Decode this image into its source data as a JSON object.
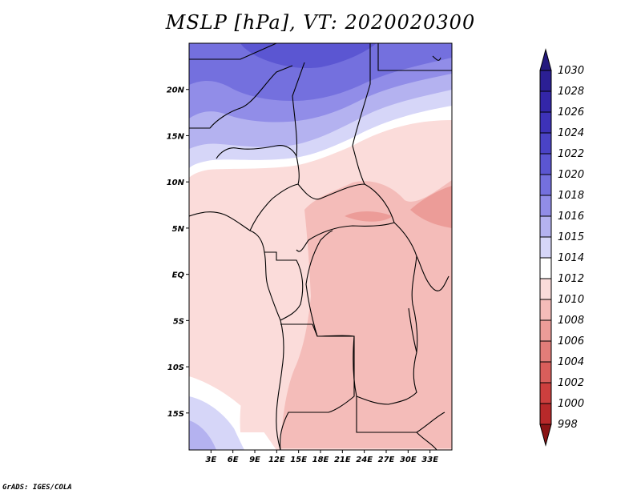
{
  "title": "MSLP [hPa], VT: 2020020300",
  "credit": "GrADS: IGES/COLA",
  "map": {
    "lon_range": [
      0,
      36
    ],
    "lat_range": [
      -19,
      25
    ],
    "lat_ticks": [
      {
        "value": 20,
        "label": "20N"
      },
      {
        "value": 15,
        "label": "15N"
      },
      {
        "value": 10,
        "label": "10N"
      },
      {
        "value": 5,
        "label": "5N"
      },
      {
        "value": 0,
        "label": "EQ"
      },
      {
        "value": -5,
        "label": "5S"
      },
      {
        "value": -10,
        "label": "10S"
      },
      {
        "value": -15,
        "label": "15S"
      }
    ],
    "lon_ticks": [
      {
        "value": 3,
        "label": "3E"
      },
      {
        "value": 6,
        "label": "6E"
      },
      {
        "value": 9,
        "label": "9E"
      },
      {
        "value": 12,
        "label": "12E"
      },
      {
        "value": 15,
        "label": "15E"
      },
      {
        "value": 18,
        "label": "18E"
      },
      {
        "value": 21,
        "label": "21E"
      },
      {
        "value": 24,
        "label": "24E"
      },
      {
        "value": 27,
        "label": "27E"
      },
      {
        "value": 30,
        "label": "30E"
      },
      {
        "value": 33,
        "label": "33E"
      }
    ]
  },
  "colorbar": {
    "unit": "hPa",
    "levels": [
      {
        "label": "1030",
        "color": "#2b1f94"
      },
      {
        "label": "1028",
        "color": "#3326a8"
      },
      {
        "label": "1026",
        "color": "#3d32b8"
      },
      {
        "label": "1024",
        "color": "#4a43c6"
      },
      {
        "label": "1022",
        "color": "#5b56d2"
      },
      {
        "label": "1020",
        "color": "#7470de"
      },
      {
        "label": "1018",
        "color": "#918de8"
      },
      {
        "label": "1016",
        "color": "#b4b2f0"
      },
      {
        "label": "1015",
        "color": "#d6d6f8"
      },
      {
        "label": "1014",
        "color": "#ffffff"
      },
      {
        "label": "1012",
        "color": "#fbdcda"
      },
      {
        "label": "1010",
        "color": "#f4bcb9"
      },
      {
        "label": "1008",
        "color": "#ec9c98"
      },
      {
        "label": "1006",
        "color": "#e27d79"
      },
      {
        "label": "1004",
        "color": "#d95e5b"
      },
      {
        "label": "1002",
        "color": "#cd3f3e"
      },
      {
        "label": "1000",
        "color": "#b8292a"
      },
      {
        "label": "998",
        "color": "#9c1b1c"
      }
    ],
    "top_arrow_color": "#24197e",
    "bottom_arrow_color": "#8a1415"
  }
}
